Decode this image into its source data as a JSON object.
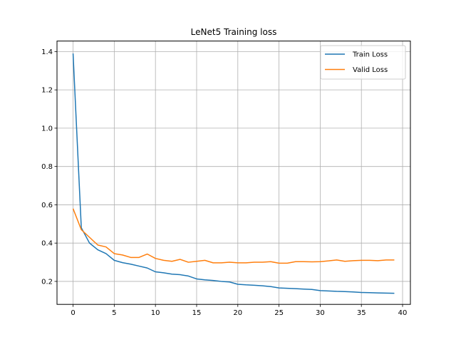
{
  "chart_data": {
    "type": "line",
    "title": "LeNet5 Training loss",
    "xlabel": "",
    "ylabel": "",
    "xlim": [
      -1.95,
      40.95
    ],
    "ylim": [
      0.08,
      1.455
    ],
    "xticks": [
      0,
      5,
      10,
      15,
      20,
      25,
      30,
      35,
      40
    ],
    "yticks": [
      0.2,
      0.4,
      0.6,
      0.8,
      1.0,
      1.2,
      1.4
    ],
    "xtick_labels": [
      "0",
      "5",
      "10",
      "15",
      "20",
      "25",
      "30",
      "35",
      "40"
    ],
    "ytick_labels": [
      "0.2",
      "0.4",
      "0.6",
      "0.8",
      "1.0",
      "1.2",
      "1.4"
    ],
    "grid": true,
    "legend_position": "top-right",
    "x": [
      0,
      1,
      2,
      3,
      4,
      5,
      6,
      7,
      8,
      9,
      10,
      11,
      12,
      13,
      14,
      15,
      16,
      17,
      18,
      19,
      20,
      21,
      22,
      23,
      24,
      25,
      26,
      27,
      28,
      29,
      30,
      31,
      32,
      33,
      34,
      35,
      36,
      37,
      38,
      39
    ],
    "series": [
      {
        "name": "Train Loss",
        "color": "#1f77b4",
        "values": [
          1.39,
          0.48,
          0.4,
          0.365,
          0.345,
          0.31,
          0.298,
          0.29,
          0.28,
          0.27,
          0.25,
          0.245,
          0.238,
          0.235,
          0.228,
          0.213,
          0.208,
          0.205,
          0.2,
          0.197,
          0.185,
          0.182,
          0.18,
          0.177,
          0.173,
          0.166,
          0.164,
          0.162,
          0.16,
          0.158,
          0.152,
          0.15,
          0.148,
          0.147,
          0.145,
          0.142,
          0.141,
          0.14,
          0.139,
          0.138
        ]
      },
      {
        "name": "Valid Loss",
        "color": "#ff7f0e",
        "values": [
          0.58,
          0.47,
          0.43,
          0.39,
          0.38,
          0.345,
          0.338,
          0.325,
          0.325,
          0.343,
          0.32,
          0.31,
          0.305,
          0.315,
          0.3,
          0.305,
          0.31,
          0.297,
          0.297,
          0.3,
          0.297,
          0.297,
          0.3,
          0.3,
          0.303,
          0.295,
          0.295,
          0.303,
          0.303,
          0.302,
          0.303,
          0.307,
          0.312,
          0.305,
          0.308,
          0.31,
          0.31,
          0.308,
          0.312,
          0.312
        ]
      }
    ]
  }
}
